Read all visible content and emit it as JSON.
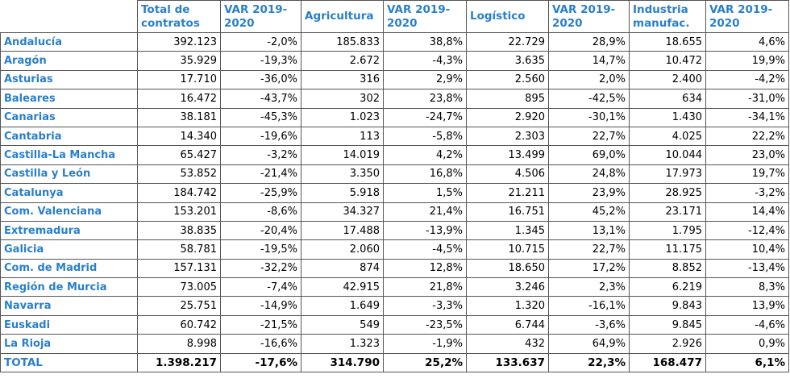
{
  "table": {
    "header": [
      "Total de contratos",
      "VAR 2019-2020",
      "Agricultura",
      "VAR 2019-2020",
      "Logístico",
      "VAR 2019-2020",
      "Industria manufac.",
      "VAR 2019-2020"
    ],
    "rows": [
      [
        "Andalucía",
        "392.123",
        "-2,0%",
        "185.833",
        "38,8%",
        "22.729",
        "28,9%",
        "18.655",
        "4,6%"
      ],
      [
        "Aragón",
        "35.929",
        "-19,3%",
        "2.672",
        "-4,3%",
        "3.635",
        "14,7%",
        "10.472",
        "19,9%"
      ],
      [
        "Asturias",
        "17.710",
        "-36,0%",
        "316",
        "2,9%",
        "2.560",
        "2,0%",
        "2.400",
        "-4,2%"
      ],
      [
        "Baleares",
        "16.472",
        "-43,7%",
        "302",
        "23,8%",
        "895",
        "-42,5%",
        "634",
        "-31,0%"
      ],
      [
        "Canarias",
        "38.181",
        "-45,3%",
        "1.023",
        "-24,7%",
        "2.920",
        "-30,1%",
        "1.430",
        "-34,1%"
      ],
      [
        "Cantabria",
        "14.340",
        "-19,6%",
        "113",
        "-5,8%",
        "2.303",
        "22,7%",
        "4.025",
        "22,2%"
      ],
      [
        "Castilla-La Mancha",
        "65.427",
        "-3,2%",
        "14.019",
        "4,2%",
        "13.499",
        "69,0%",
        "10.044",
        "23,0%"
      ],
      [
        "Castilla y León",
        "53.852",
        "-21,4%",
        "3.350",
        "16,8%",
        "4.506",
        "24,8%",
        "17.973",
        "19,7%"
      ],
      [
        "Catalunya",
        "184.742",
        "-25,9%",
        "5.918",
        "1,5%",
        "21.211",
        "23,9%",
        "28.925",
        "-3,2%"
      ],
      [
        "Com. Valenciana",
        "153.201",
        "-8,6%",
        "34.327",
        "21,4%",
        "16.751",
        "45,2%",
        "23.171",
        "14,4%"
      ],
      [
        "Extremadura",
        "38.835",
        "-20,4%",
        "17.488",
        "-13,9%",
        "1.345",
        "13,1%",
        "1.795",
        "-12,4%"
      ],
      [
        "Galicia",
        "58.781",
        "-19,5%",
        "2.060",
        "-4,5%",
        "10.715",
        "22,7%",
        "11.175",
        "10,4%"
      ],
      [
        "Com. de Madrid",
        "157.131",
        "-32,2%",
        "874",
        "12,8%",
        "18.650",
        "17,2%",
        "8.852",
        "-13,4%"
      ],
      [
        "Región de Murcia",
        "73.005",
        "-7,4%",
        "42.915",
        "21,8%",
        "3.246",
        "2,3%",
        "6.219",
        "8,3%"
      ],
      [
        "Navarra",
        "25.751",
        "-14,9%",
        "1.649",
        "-3,3%",
        "1.320",
        "-16,1%",
        "9.843",
        "13,9%"
      ],
      [
        "Euskadi",
        "60.742",
        "-21,5%",
        "549",
        "-23,5%",
        "6.744",
        "-3,6%",
        "9.845",
        "-4,6%"
      ],
      [
        "La Rioja",
        "8.998",
        "-16,6%",
        "1.323",
        "-1,9%",
        "432",
        "64,9%",
        "2.926",
        "0,9%"
      ],
      [
        "TOTAL",
        "1.398.217",
        "-17,6%",
        "314.790",
        "25,2%",
        "133.637",
        "22,3%",
        "168.477",
        "6,1%"
      ]
    ]
  }
}
